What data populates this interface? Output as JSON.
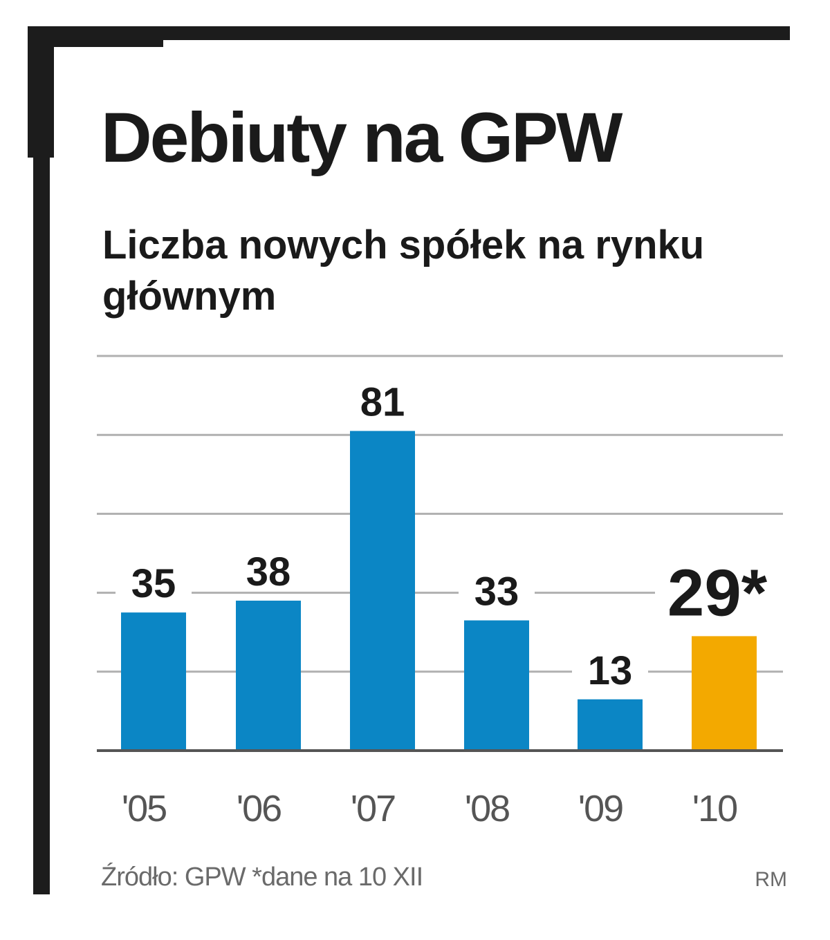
{
  "chart_data": {
    "type": "bar",
    "title": "Debiuty na GPW",
    "subtitle": "Liczba nowych spółek na rynku głównym",
    "categories": [
      "'05",
      "'06",
      "'07",
      "'08",
      "'09",
      "'10"
    ],
    "values": [
      35,
      38,
      81,
      33,
      13,
      29
    ],
    "value_labels": [
      "35",
      "38",
      "81",
      "33",
      "13",
      "29*"
    ],
    "highlight_index": 5,
    "ylim": [
      0,
      100
    ],
    "grid": true,
    "colors": {
      "bar": "#0b86c5",
      "highlight": "#f3a900",
      "grid": "#b0b0b0",
      "baseline": "#555555"
    },
    "xlabel": "",
    "ylabel": ""
  },
  "footer": {
    "source": "Źródło: GPW  *dane na 10 XII",
    "credit": "RM"
  }
}
